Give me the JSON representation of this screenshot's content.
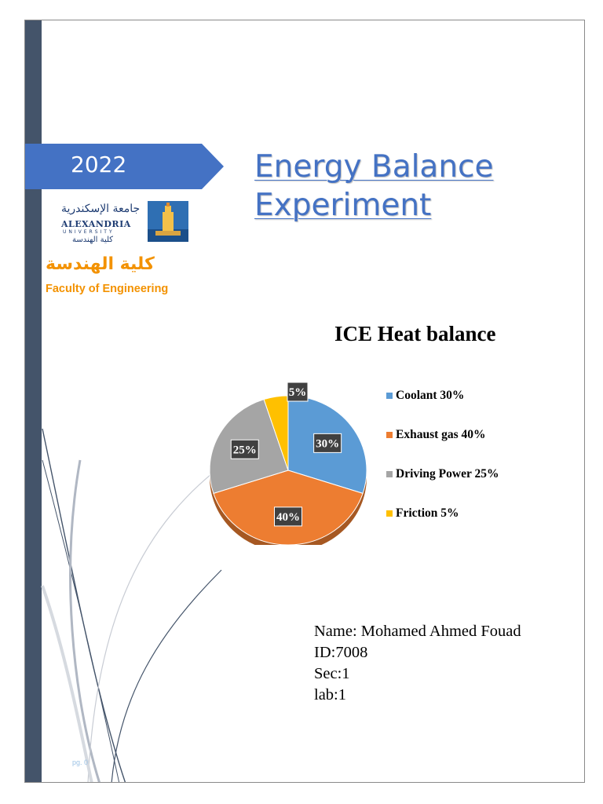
{
  "year": "2022",
  "title": {
    "line1": "Energy Balance",
    "line2": "Experiment"
  },
  "logo": {
    "arabic_top": "جامعة الإسكندرية",
    "english": "ALEXANDRIA",
    "english_sub": "UNIVERSITY",
    "arabic_bottom": "كلية الهندسة",
    "faculty_arabic": "كلية الهندسة",
    "faculty_english": "Faculty of Engineering"
  },
  "chart_data": {
    "type": "pie",
    "title": "ICE Heat balance",
    "categories": [
      "Coolant",
      "Exhaust gas",
      "Driving Power",
      "Friction"
    ],
    "values": [
      30,
      40,
      25,
      5
    ],
    "data_labels": [
      "30%",
      "40%",
      "25%",
      "5%"
    ],
    "legend": [
      "Coolant 30%",
      "Exhaust gas 40%",
      "Driving Power 25%",
      "Friction 5%"
    ],
    "colors": [
      "#5b9bd5",
      "#ed7d31",
      "#a5a5a5",
      "#ffc000"
    ],
    "legend_position": "right"
  },
  "student": {
    "name": "Name: Mohamed Ahmed Fouad",
    "id": "ID:7008",
    "sec": "Sec:1",
    "lab": "lab:1"
  },
  "page_number": "pg. 0",
  "colors": {
    "sidebar": "#44546a",
    "banner": "#4472c4",
    "title": "#4472c4",
    "faculty": "#f39200"
  }
}
